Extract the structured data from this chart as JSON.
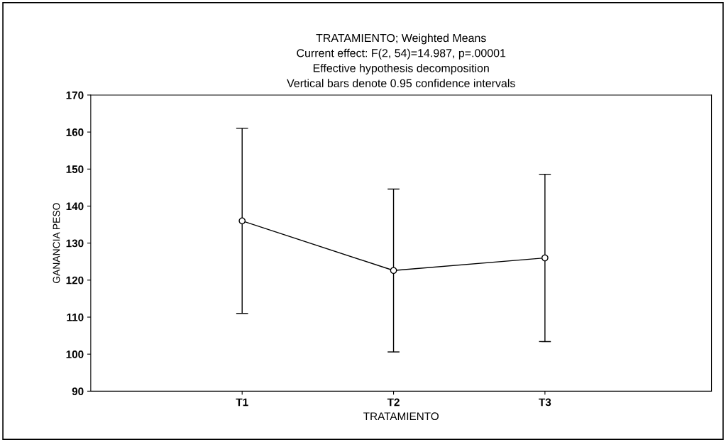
{
  "chart_data": {
    "type": "line",
    "title": "TRATAMIENTO; Weighted Means\nCurrent effect: F(2, 54)=14.987, p=.00001\nEffective hypothesis decomposition\nVertical bars denote 0.95 confidence intervals",
    "xlabel": "TRATAMIENTO",
    "ylabel": "GANANCIA PESO",
    "categories": [
      "T1",
      "T2",
      "T3"
    ],
    "series": [
      {
        "color": "#000000",
        "values": [
          136,
          122.6,
          126
        ],
        "errors": [
          25,
          22,
          22.6
        ]
      }
    ],
    "ylim": [
      90,
      170
    ],
    "yticks": [
      90,
      100,
      110,
      120,
      130,
      140,
      150,
      160,
      170
    ],
    "marker": "circle",
    "line_style": "solid",
    "grid": false,
    "legend": false
  }
}
